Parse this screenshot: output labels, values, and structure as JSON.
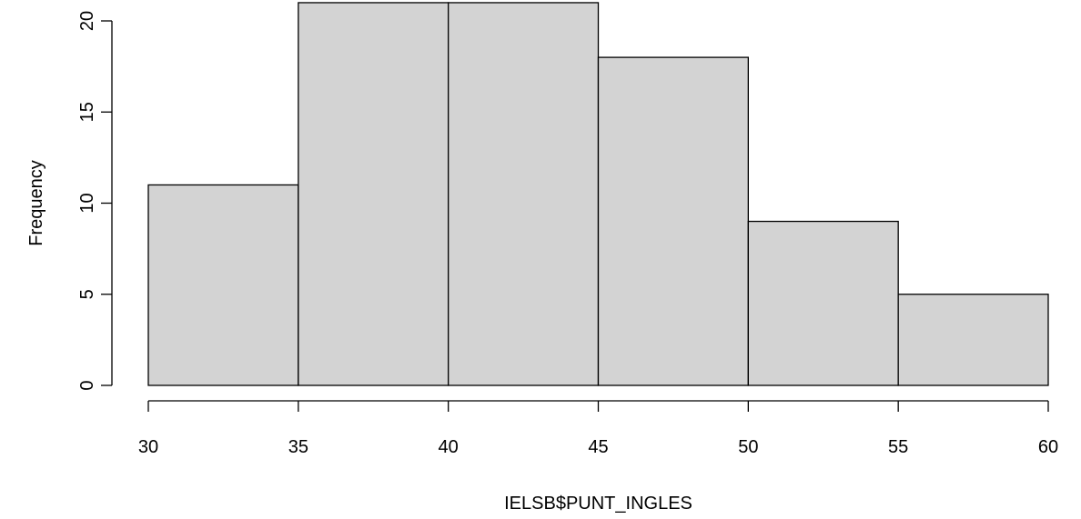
{
  "chart_data": {
    "type": "bar",
    "title": "",
    "xlabel": "IELSB$PUNT_INGLES",
    "ylabel": "Frequency",
    "bin_edges": [
      30,
      35,
      40,
      45,
      50,
      55,
      60
    ],
    "values": [
      11,
      21,
      21,
      18,
      9,
      5
    ],
    "x_ticks": [
      "30",
      "35",
      "40",
      "45",
      "50",
      "55",
      "60"
    ],
    "y_ticks": [
      "0",
      "5",
      "10",
      "15",
      "20"
    ],
    "xlim": [
      30,
      60
    ],
    "ylim": [
      0,
      21
    ],
    "bar_color": "#d3d3d3",
    "grid": false,
    "legend": "none"
  }
}
